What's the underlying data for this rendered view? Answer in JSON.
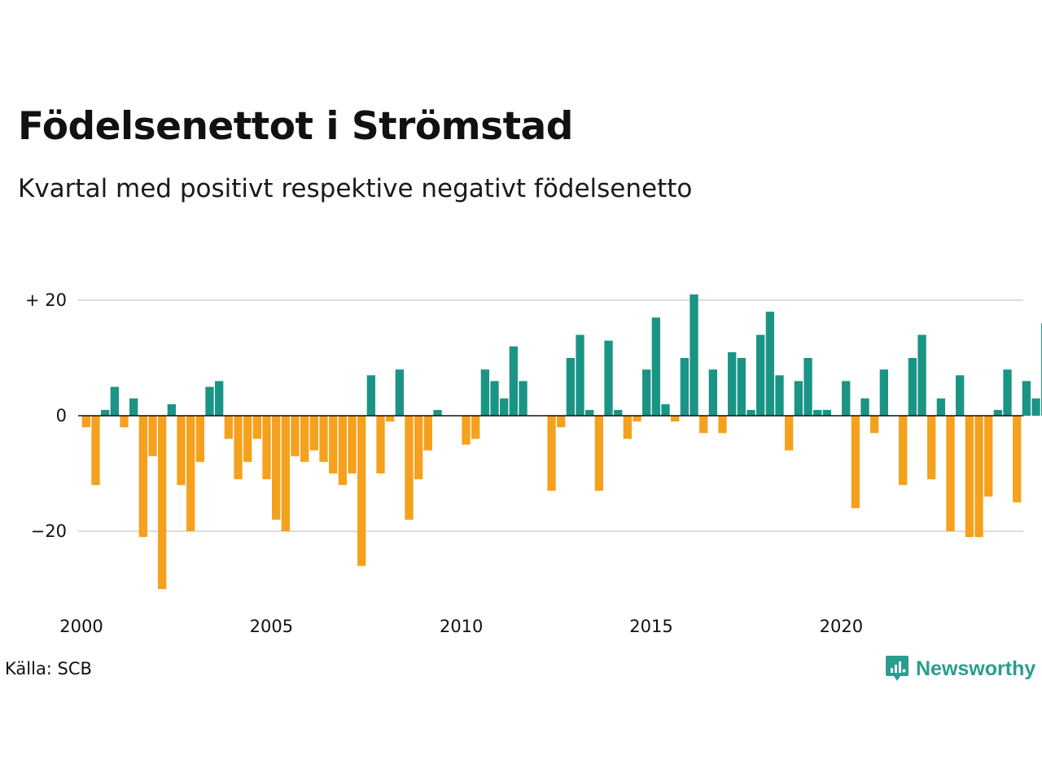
{
  "title": "Födelsenettot i Strömstad",
  "subtitle": "Kvartal med positivt respektive negativt födelsenetto",
  "source": "Källa: SCB",
  "brand": {
    "name": "Newsworthy",
    "icon": "newsworthy-logo-icon"
  },
  "colors": {
    "positive": "#1a9485",
    "negative": "#f5a11d",
    "grid": "#dddddd",
    "zero_line": "#111111",
    "brand": "#2a9d8f"
  },
  "chart_data": {
    "type": "bar",
    "ylim": [
      -30,
      22
    ],
    "yticks": [
      {
        "value": 20,
        "label": "+ 20"
      },
      {
        "value": 0,
        "label": "0"
      },
      {
        "value": -20,
        "label": "−20"
      }
    ],
    "xticks": [
      "2000",
      "2005",
      "2010",
      "2015",
      "2020"
    ],
    "grid": true,
    "start": {
      "year": 2000,
      "quarter": 1
    },
    "values": [
      -2,
      -12,
      1,
      5,
      -2,
      3,
      -21,
      -7,
      -30,
      2,
      -12,
      -20,
      -8,
      5,
      6,
      -4,
      -11,
      -8,
      -4,
      -11,
      -18,
      -20,
      -7,
      -8,
      -6,
      -8,
      -10,
      -12,
      -10,
      -26,
      7,
      -10,
      -1,
      8,
      -18,
      -11,
      -6,
      1,
      0,
      0,
      -5,
      -4,
      8,
      6,
      3,
      12,
      6,
      0,
      0,
      -13,
      -2,
      10,
      14,
      1,
      -13,
      13,
      1,
      -4,
      -1,
      8,
      17,
      2,
      -1,
      10,
      21,
      -3,
      8,
      -3,
      11,
      10,
      1,
      14,
      18,
      7,
      -6,
      6,
      10,
      1,
      1,
      0,
      6,
      -16,
      3,
      -3,
      8,
      0,
      -12,
      10,
      14,
      -11,
      3,
      -20,
      7,
      -21,
      -21,
      -14,
      1,
      8,
      -15,
      6,
      3,
      16
    ]
  }
}
